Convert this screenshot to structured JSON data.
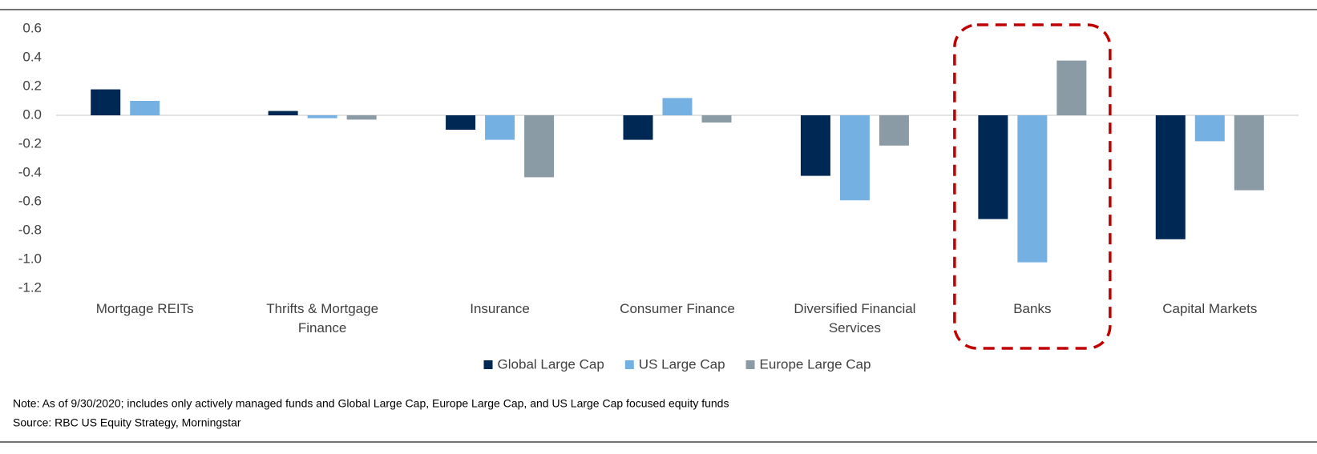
{
  "chart_data": {
    "type": "bar",
    "categories": [
      "Mortgage REITs",
      "Thrifts & Mortgage Finance",
      "Insurance",
      "Consumer Finance",
      "Diversified Financial Services",
      "Banks",
      "Capital Markets"
    ],
    "series": [
      {
        "name": "Global Large Cap",
        "color": "#002855",
        "values": [
          0.18,
          0.03,
          -0.1,
          -0.17,
          -0.42,
          -0.72,
          -0.86
        ]
      },
      {
        "name": "US Large Cap",
        "color": "#74b0e2",
        "values": [
          0.1,
          -0.02,
          -0.17,
          0.12,
          -0.59,
          -1.02,
          -0.18
        ]
      },
      {
        "name": "Europe Large Cap",
        "color": "#8a9ba5",
        "values": [
          null,
          -0.03,
          -0.43,
          -0.05,
          -0.21,
          0.38,
          -0.52
        ]
      }
    ],
    "ylim": [
      -1.2,
      0.6
    ],
    "yticks": [
      0.6,
      0.4,
      0.2,
      {
        "value": 0,
        "label": "0.0"
      },
      -0.2,
      -0.4,
      -0.6,
      -0.8,
      {
        "value": -1.0,
        "label": "-1.0"
      },
      -1.2
    ],
    "grid": false,
    "legend": "bottom",
    "note": "Note: As of 9/30/2020; includes only actively managed funds and Global Large Cap, Europe Large Cap, and US Large Cap focused equity funds",
    "source": "Source: RBC US Equity Strategy, Morningstar"
  }
}
